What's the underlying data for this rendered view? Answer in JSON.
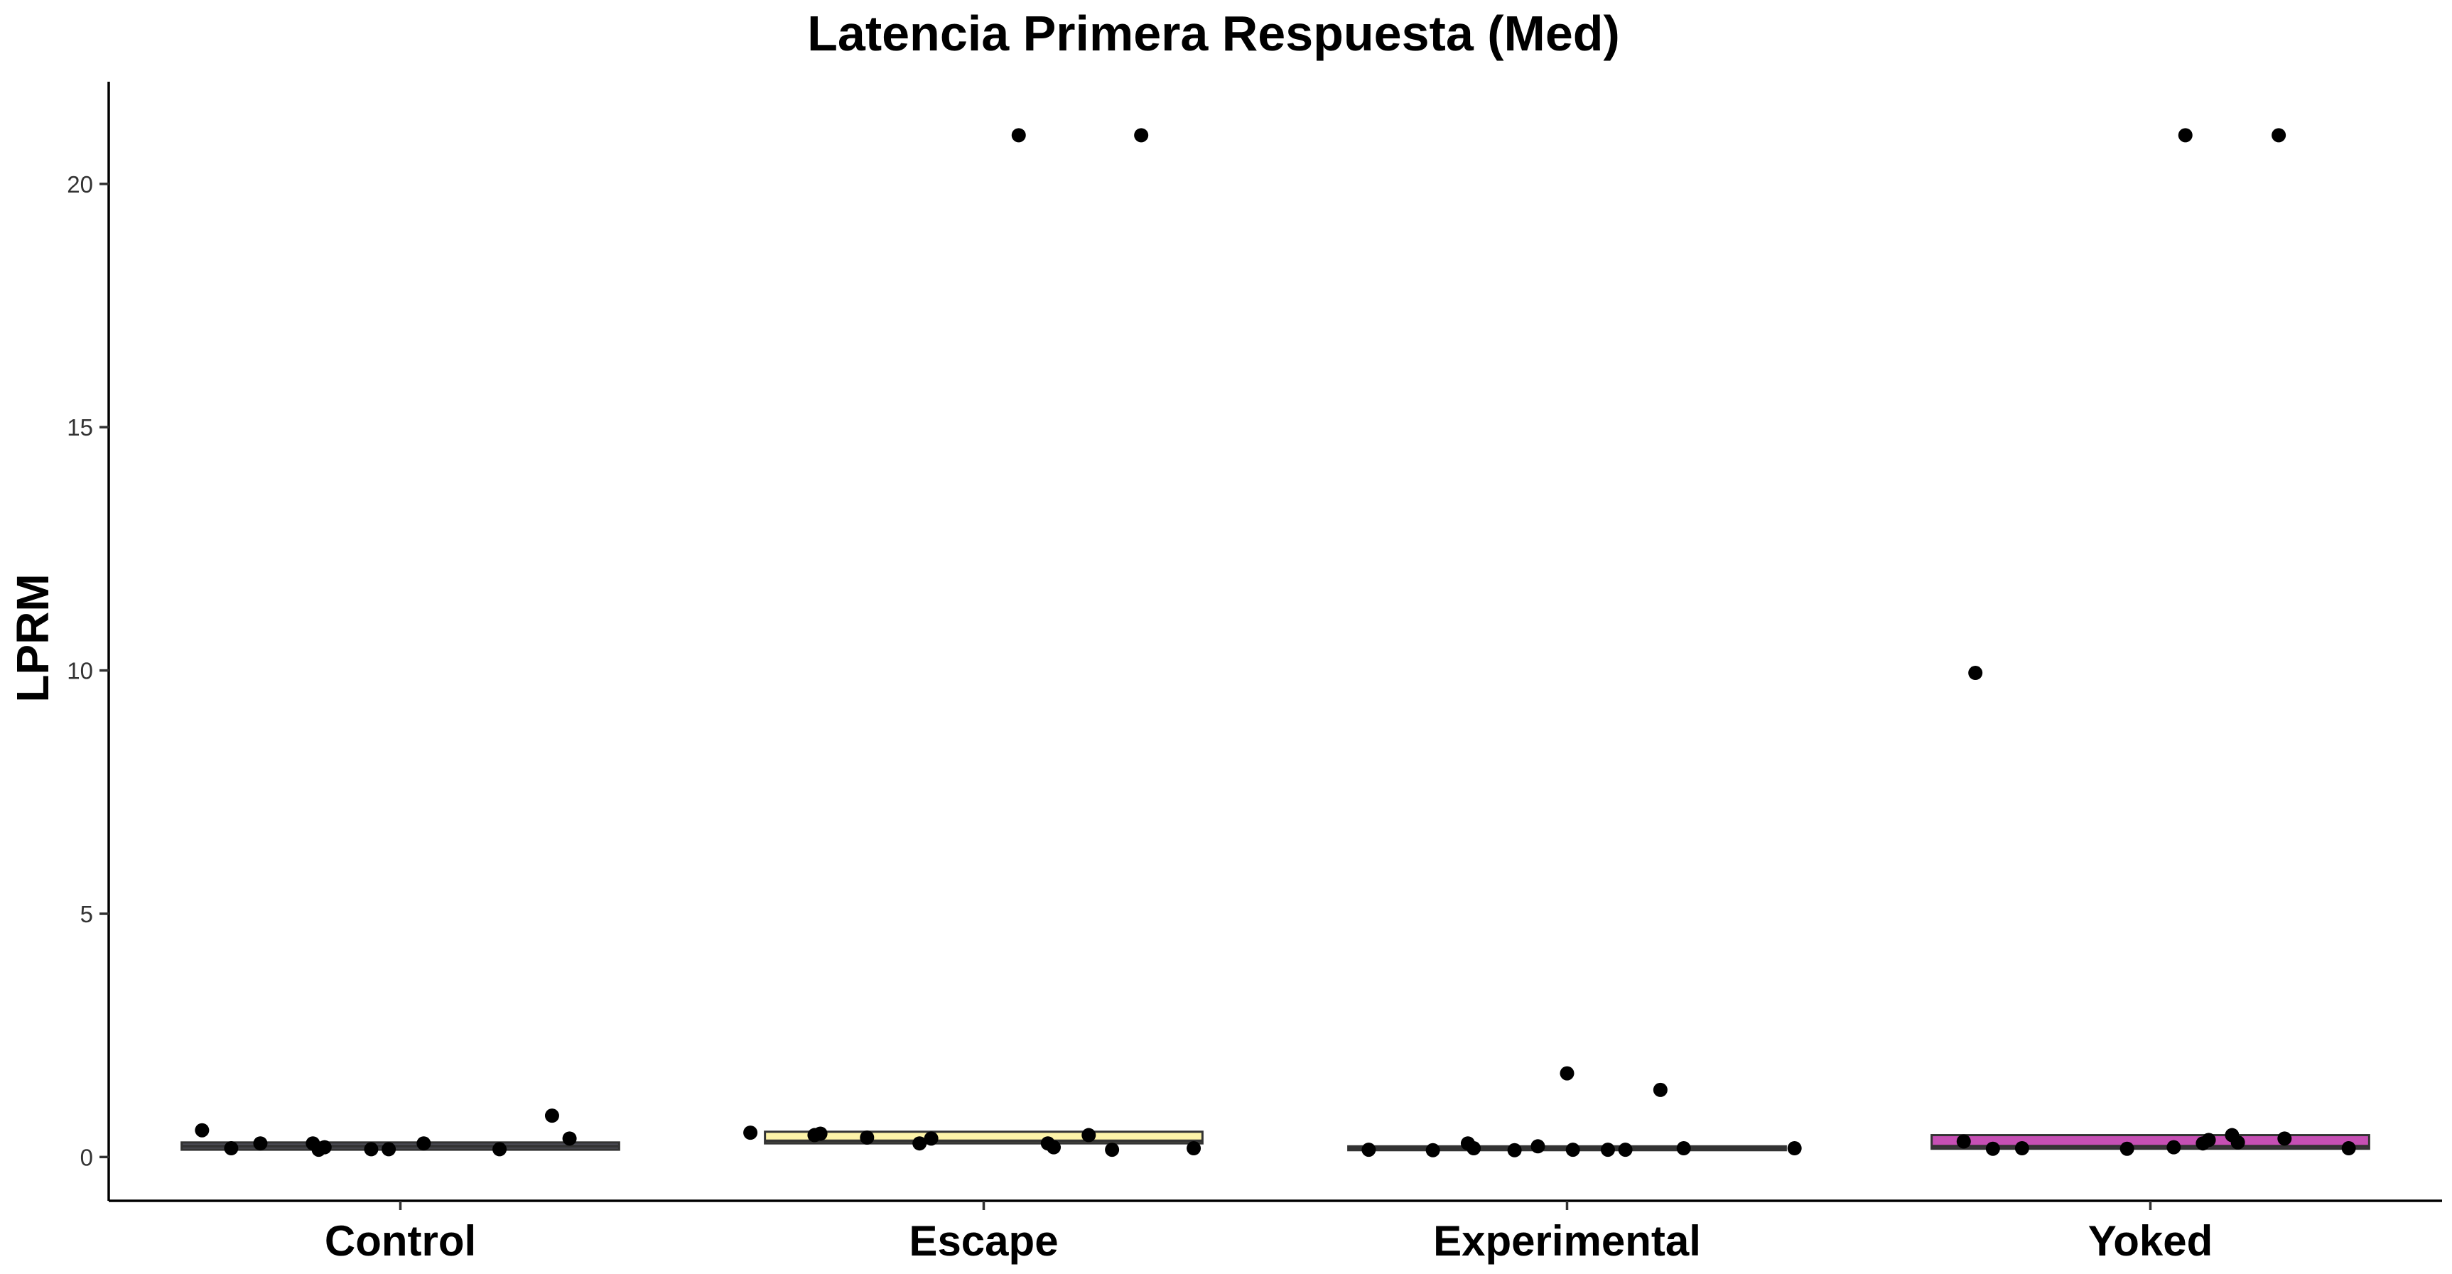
{
  "chart_data": {
    "type": "box",
    "title": "Latencia Primera Respuesta (Med)",
    "xlabel": "",
    "ylabel": "LPRM",
    "ylim": [
      -0.9,
      22.1
    ],
    "yticks": [
      0,
      5,
      10,
      15,
      20
    ],
    "grid": false,
    "legend": "none",
    "categories": [
      "Control",
      "Escape",
      "Experimental",
      "Yoked"
    ],
    "boxes": [
      {
        "category": "Control",
        "q1": 0.15,
        "median": 0.22,
        "q3": 0.3,
        "fill": "#4d4d57"
      },
      {
        "category": "Escape",
        "q1": 0.28,
        "median": 0.33,
        "q3": 0.52,
        "fill": "#fdf3a8"
      },
      {
        "category": "Experimental",
        "q1": 0.14,
        "median": 0.17,
        "q3": 0.22,
        "fill": "#3a3a48"
      },
      {
        "category": "Yoked",
        "q1": 0.17,
        "median": 0.22,
        "q3": 0.45,
        "fill": "#c64fb4"
      }
    ],
    "points": [
      {
        "category": "Control",
        "jitter": [
          -0.34,
          -0.29,
          -0.24,
          -0.15,
          -0.14,
          -0.13,
          -0.05,
          -0.02,
          0.04,
          0.17,
          0.26,
          0.29
        ],
        "values": [
          0.55,
          0.18,
          0.28,
          0.28,
          0.15,
          0.2,
          0.16,
          0.16,
          0.28,
          0.16,
          0.85,
          0.38
        ]
      },
      {
        "category": "Escape",
        "jitter": [
          -0.4,
          -0.29,
          -0.28,
          -0.2,
          -0.11,
          -0.09,
          0.06,
          0.11,
          0.12,
          0.18,
          0.22,
          0.27,
          0.36
        ],
        "values": [
          0.5,
          0.45,
          0.48,
          0.4,
          0.28,
          0.38,
          21.0,
          0.28,
          0.2,
          0.45,
          0.15,
          21.0,
          0.18
        ]
      },
      {
        "category": "Experimental",
        "jitter": [
          -0.34,
          -0.23,
          -0.17,
          -0.16,
          -0.09,
          -0.05,
          0.0,
          0.01,
          0.07,
          0.1,
          0.16,
          0.2,
          0.39
        ],
        "values": [
          0.15,
          0.14,
          0.28,
          0.18,
          0.14,
          0.22,
          1.72,
          0.15,
          0.15,
          0.15,
          1.38,
          0.18,
          0.18
        ]
      },
      {
        "category": "Yoked",
        "jitter": [
          -0.32,
          -0.3,
          -0.27,
          -0.22,
          -0.04,
          0.04,
          0.06,
          0.09,
          0.1,
          0.14,
          0.15,
          0.22,
          0.23,
          0.34
        ],
        "values": [
          0.32,
          9.95,
          0.17,
          0.18,
          0.17,
          0.2,
          21.0,
          0.28,
          0.35,
          0.45,
          0.3,
          21.0,
          0.38,
          0.18
        ]
      }
    ]
  }
}
